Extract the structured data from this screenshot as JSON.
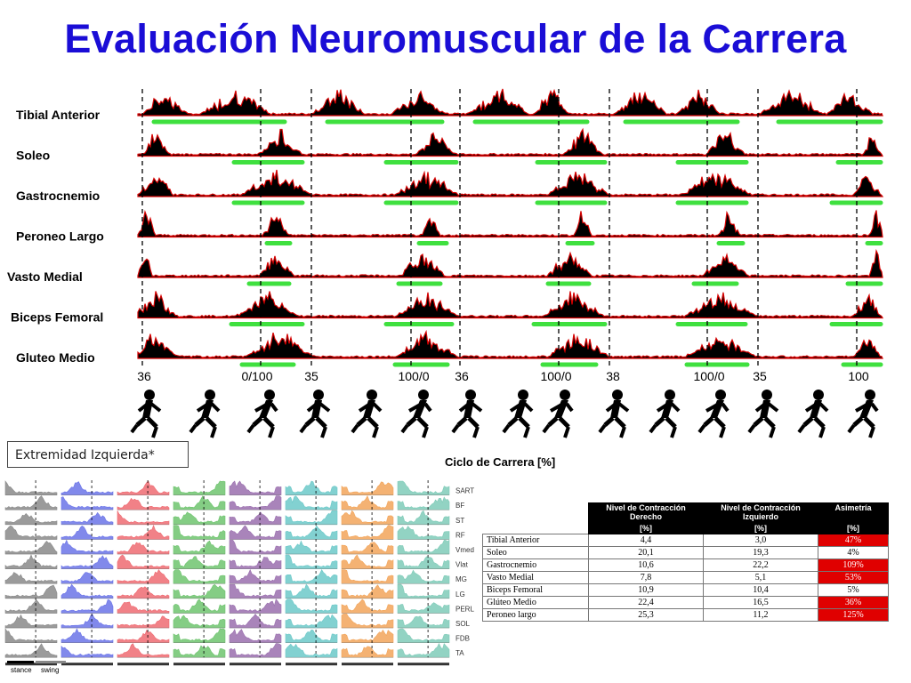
{
  "title": "Evaluación Neuromuscular de la Carrera",
  "chart_data": [
    {
      "type": "line",
      "muscles": [
        "Tibial Anterior",
        "Soleo",
        "Gastrocnemio",
        "Peroneo Largo",
        "Vasto Medial",
        "Biceps Femoral",
        "Gluteo Medio"
      ],
      "x_tick_labels": [
        "36",
        "0/100",
        "35",
        "100/0",
        "36",
        "100/0",
        "38",
        "100/0",
        "35",
        "100"
      ],
      "xlabel": "Ciclo de Carrera [%]",
      "colors": {
        "fill": "#000000",
        "outline": "#d40000",
        "activation_bar": "#3fe03f",
        "dashed_line": "#000000"
      }
    },
    {
      "type": "area",
      "muscle_codes": [
        "SART",
        "BF",
        "ST",
        "RF",
        "Vmed",
        "Vlat",
        "MG",
        "LG",
        "PERL",
        "SOL",
        "FDB",
        "TA"
      ],
      "legend": [
        "stance",
        "swing"
      ],
      "series_colors": [
        "#8a8a8a",
        "#6b74e8",
        "#ef6b72",
        "#6fc46f",
        "#9a6fae",
        "#6cc9c9",
        "#f2a55a",
        "#7fcbb8"
      ]
    }
  ],
  "extremity_label": "Extremidad Izquierda*",
  "table": {
    "headers": [
      [
        "Nivel de Contracción",
        "Derecho"
      ],
      [
        "Nivel de Contracción",
        "Izquierdo"
      ],
      [
        "Asimetría"
      ]
    ],
    "units": [
      "[%]",
      "[%]",
      "[%]"
    ],
    "rows": [
      {
        "muscle": "Tibial Anterior",
        "right": "4,4",
        "left": "3,0",
        "asymmetry": "47%",
        "high": true
      },
      {
        "muscle": "Soleo",
        "right": "20,1",
        "left": "19,3",
        "asymmetry": "4%",
        "high": false
      },
      {
        "muscle": "Gastrocnemio",
        "right": "10,6",
        "left": "22,2",
        "asymmetry": "109%",
        "high": true
      },
      {
        "muscle": "Vasto Medial",
        "right": "7,8",
        "left": "5,1",
        "asymmetry": "53%",
        "high": true
      },
      {
        "muscle": "Biceps Femoral",
        "right": "10,9",
        "left": "10,4",
        "asymmetry": "5%",
        "high": false
      },
      {
        "muscle": "Glúteo Medio",
        "right": "22,4",
        "left": "16,5",
        "asymmetry": "36%",
        "high": true
      },
      {
        "muscle": "Peroneo largo",
        "right": "25,3",
        "left": "11,2",
        "asymmetry": "125%",
        "high": true
      }
    ],
    "colors": {
      "header_bg": "#000000",
      "high_bg": "#e00000"
    }
  }
}
